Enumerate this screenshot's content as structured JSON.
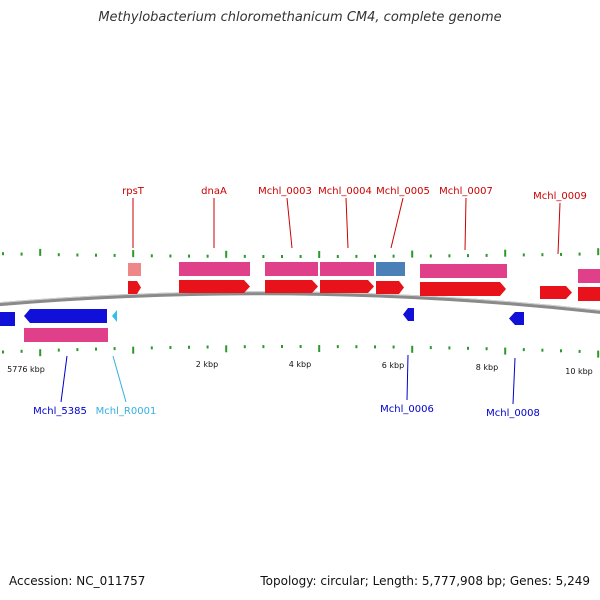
{
  "title": "Methylobacterium chloromethanicum CM4, complete genome",
  "footer": {
    "accession": "Accession: NC_011757",
    "summary": "Topology: circular; Length: 5,777,908 bp; Genes: 5,249"
  },
  "colors": {
    "forward_gene": "#e8121a",
    "forward_cds": "#e0408a",
    "reverse_gene": "#1010d8",
    "reverse_cds": "#e0408a",
    "rrna": "#33c0e8",
    "tick": "#2a9a2a",
    "backbone": "#777777",
    "label_forward": "#cc0000",
    "label_reverse": "#0000cc",
    "label_rrna": "#33b0e0"
  },
  "axis_labels": [
    "5776 kbp",
    "2 kbp",
    "4 kbp",
    "6 kbp",
    "8 kbp",
    "10 kbp"
  ],
  "forward_labels": [
    "rpsT",
    "dnaA",
    "Mchl_0003",
    "Mchl_0004",
    "Mchl_0005",
    "Mchl_0007",
    "Mchl_0009"
  ],
  "reverse_labels": [
    "Mchl_5385",
    "Mchl_R0001",
    "Mchl_0006",
    "Mchl_0008"
  ]
}
